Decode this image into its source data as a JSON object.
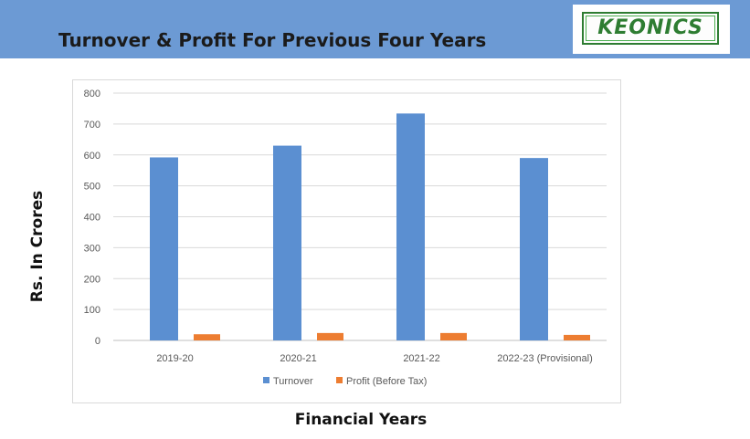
{
  "header": {
    "title": "Turnover & Profit  For Previous  Four Years",
    "logo_text": "KEONICS",
    "band_color": "#6c9ad4"
  },
  "chart_data": {
    "type": "bar",
    "categories": [
      "2019-20",
      "2020-21",
      "2021-22",
      "2022-23 (Provisional)"
    ],
    "series": [
      {
        "name": "Turnover",
        "color": "#5b8fd1",
        "values": [
          592,
          630,
          734,
          590
        ]
      },
      {
        "name": "Profit (Before Tax)",
        "color": "#ed7d31",
        "values": [
          20,
          24,
          24,
          18
        ]
      }
    ],
    "ylim": [
      0,
      800
    ],
    "yticks": [
      0,
      100,
      200,
      300,
      400,
      500,
      600,
      700,
      800
    ],
    "grid": true,
    "legend": "bottom",
    "xlabel": "Financial  Years",
    "ylabel": "Rs. In Crores"
  }
}
